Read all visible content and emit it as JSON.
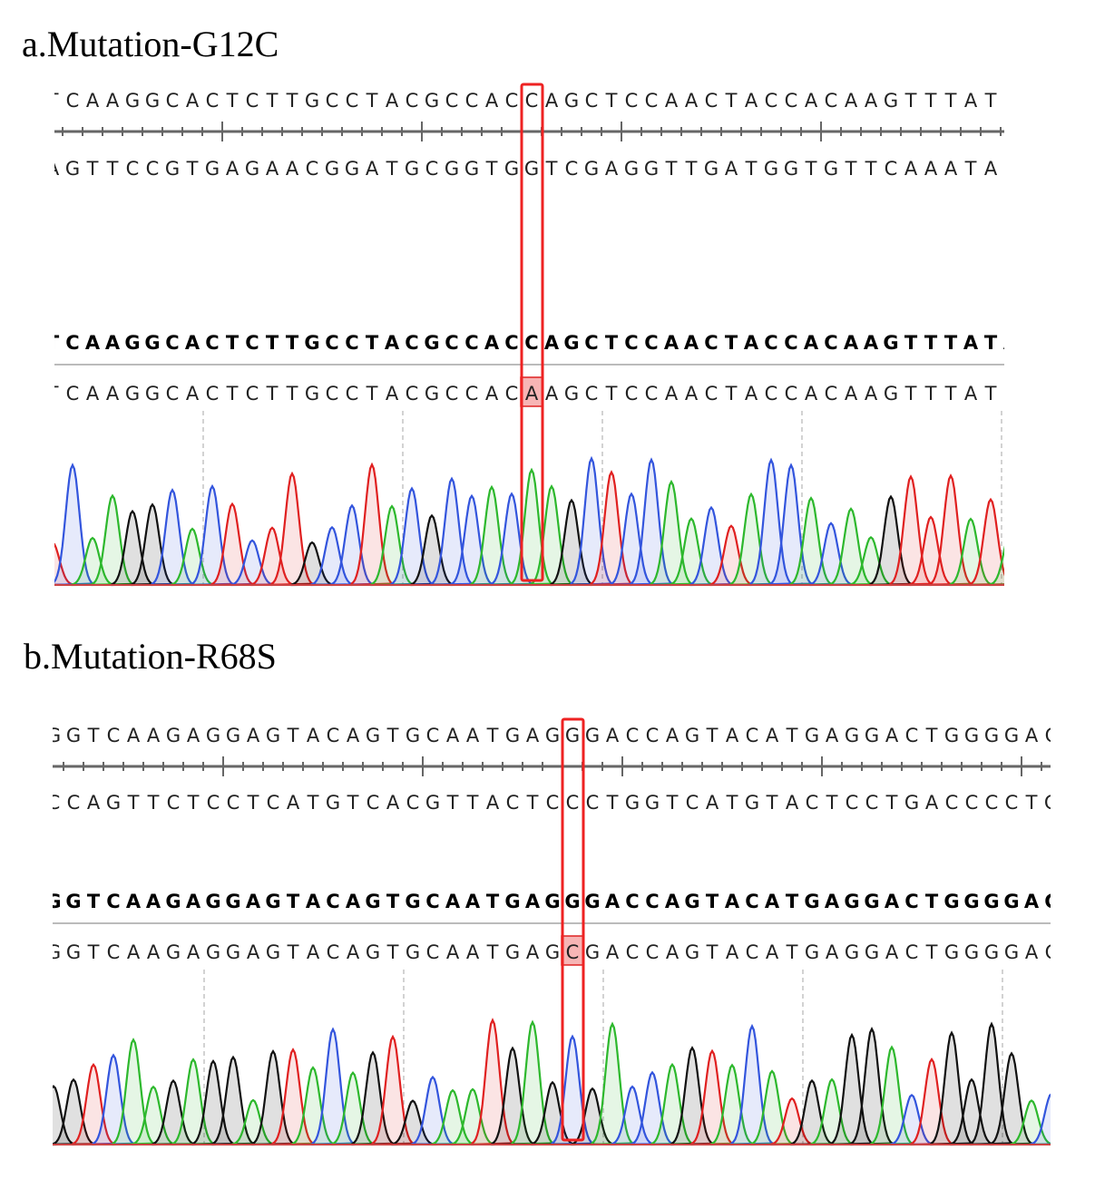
{
  "panels": [
    {
      "title": "a.Mutation-G12C",
      "top_sequence": "TCAAGGCACTCTTGCCTACGCCACCAGCTCCAACTACCACAAGTTTATA",
      "complement_sequence": "AGTTCCGTGAGAACGGATGCGGTGGTCGAGGTTGATGGTGTTCAAATAT",
      "reference_sequence": "TCAAGGCACTCTTGCCTACGCCACCAGCTCCAACTACCACAAGTTTATA",
      "sample_sequence": "TCAAGGCACTCTTGCCTACGCCACAAGCTCCAACTACCACAAGTTTATA"
    },
    {
      "title": "b.Mutation-R68S",
      "top_sequence": "GGTCAAGAGGAGTACAGTGCAATGAGGGACCAGTACATGAGGACTGGGGAC",
      "complement_sequence": "CCAGTTCTCCTCATGTCACGTTACTCCCTGGTCATGTACTCCTGACCCCTG",
      "reference_sequence": "GGTCAAGAGGAGTACAGTGCAATGAGGGACCAGTACATGAGGACTGGGGAC",
      "sample_sequence": "GGTCAAGAGGAGTACAGTGCAATGAGCGACCAGTACATGAGGACTGGGGAC"
    }
  ]
}
